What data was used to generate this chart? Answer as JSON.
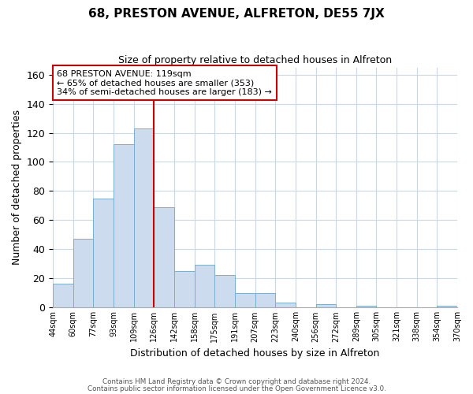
{
  "title": "68, PRESTON AVENUE, ALFRETON, DE55 7JX",
  "subtitle": "Size of property relative to detached houses in Alfreton",
  "xlabel": "Distribution of detached houses by size in Alfreton",
  "ylabel": "Number of detached properties",
  "bar_values": [
    16,
    47,
    75,
    112,
    123,
    69,
    25,
    29,
    22,
    10,
    10,
    3,
    0,
    2,
    0,
    1,
    0,
    0,
    0,
    1
  ],
  "bar_labels": [
    "44sqm",
    "60sqm",
    "77sqm",
    "93sqm",
    "109sqm",
    "126sqm",
    "142sqm",
    "158sqm",
    "175sqm",
    "191sqm",
    "207sqm",
    "223sqm",
    "240sqm",
    "256sqm",
    "272sqm",
    "289sqm",
    "305sqm",
    "321sqm",
    "338sqm",
    "354sqm",
    "370sqm"
  ],
  "bar_color": "#ccdcee",
  "bar_edge_color": "#7aaed0",
  "vline_color": "#cc0000",
  "ylim": [
    0,
    165
  ],
  "yticks": [
    0,
    20,
    40,
    60,
    80,
    100,
    120,
    140,
    160
  ],
  "annotation_title": "68 PRESTON AVENUE: 119sqm",
  "annotation_line1": "← 65% of detached houses are smaller (353)",
  "annotation_line2": "34% of semi-detached houses are larger (183) →",
  "annotation_box_color": "#ffffff",
  "annotation_box_edge": "#cc0000",
  "footer_line1": "Contains HM Land Registry data © Crown copyright and database right 2024.",
  "footer_line2": "Contains public sector information licensed under the Open Government Licence v3.0.",
  "background_color": "#ffffff",
  "grid_color": "#c8d8e8"
}
